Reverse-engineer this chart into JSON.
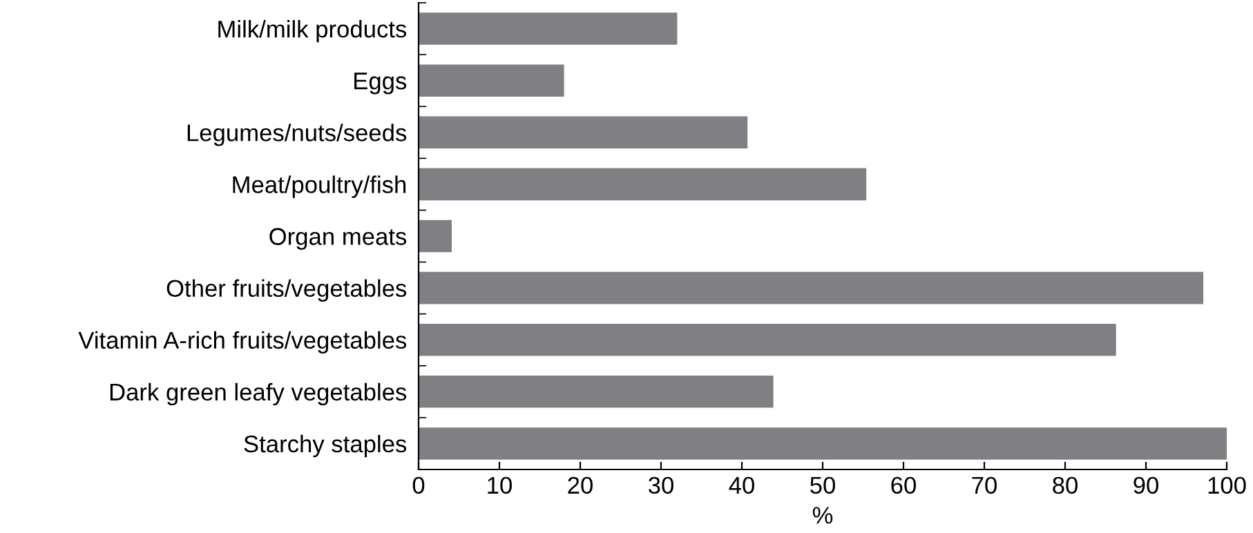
{
  "chart_data": {
    "type": "bar",
    "orientation": "horizontal",
    "xlabel": "%",
    "categories": [
      "Milk/milk products",
      "Eggs",
      "Legumes/nuts/seeds",
      "Meat/poultry/fish",
      "Organ meats",
      "Other fruits/vegetables",
      "Vitamin A-rich fruits/vegetables",
      "Dark green leafy vegetables",
      "Starchy staples"
    ],
    "values": [
      32,
      18,
      40.7,
      55.4,
      4.1,
      97.1,
      86.3,
      43.9,
      100
    ],
    "color": "#808084",
    "xlim": [
      0,
      100
    ],
    "xticks": [
      0,
      10,
      20,
      30,
      40,
      50,
      60,
      70,
      80,
      90,
      100
    ],
    "grid": false
  }
}
